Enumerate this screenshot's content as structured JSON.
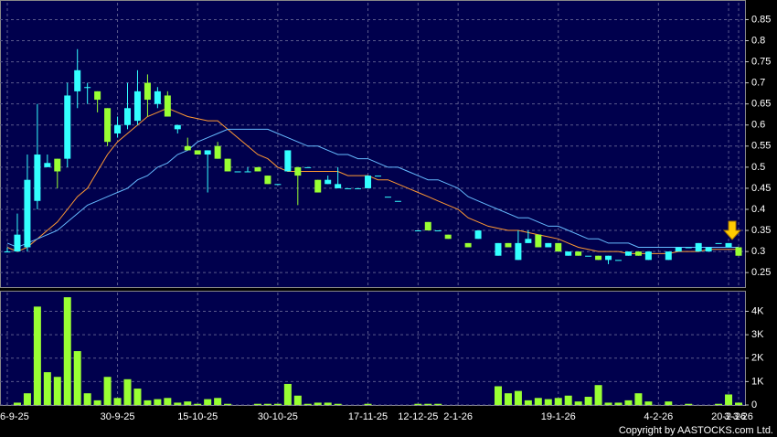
{
  "chart_data": [
    {
      "type": "candlestick",
      "categories": [
        "6-9-25",
        null,
        null,
        null,
        null,
        null,
        null,
        null,
        null,
        null,
        null,
        "30-9-25",
        null,
        null,
        null,
        null,
        null,
        null,
        null,
        "15-10-25",
        null,
        null,
        null,
        null,
        null,
        null,
        null,
        "30-10-25",
        null,
        null,
        null,
        null,
        null,
        null,
        null,
        null,
        "17-11-25",
        null,
        null,
        null,
        null,
        "12-12-25",
        null,
        null,
        null,
        "2-1-26",
        null,
        null,
        null,
        null,
        null,
        null,
        null,
        null,
        null,
        "19-1-26",
        null,
        null,
        null,
        null,
        null,
        null,
        null,
        null,
        null,
        "4-2-26",
        null,
        null,
        null,
        null,
        null,
        null,
        "20-2-26",
        "3-3-26"
      ],
      "open": [
        0.3,
        0.3,
        0.31,
        0.42,
        0.5,
        0.52,
        0.52,
        0.68,
        0.69,
        0.68,
        0.64,
        0.58,
        0.6,
        0.61,
        0.7,
        0.65,
        0.67,
        0.59,
        0.55,
        0.54,
        0.53,
        0.55,
        0.52,
        0.49,
        0.49,
        0.5,
        0.48,
        0.46,
        0.49,
        0.5,
        0.5,
        0.47,
        0.46,
        0.45,
        0.45,
        0.45,
        0.45,
        0.48,
        0.43,
        0.42,
        null,
        0.35,
        0.37,
        0.35,
        0.34,
        null,
        0.32,
        0.33,
        null,
        0.29,
        0.32,
        0.28,
        0.32,
        0.34,
        0.31,
        0.32,
        0.29,
        0.3,
        0.29,
        0.29,
        0.28,
        0.28,
        0.29,
        0.3,
        0.28,
        null,
        0.28,
        0.3,
        0.31,
        0.3,
        0.3,
        0.32,
        0.31,
        0.31
      ],
      "high": [
        0.31,
        0.39,
        0.53,
        0.65,
        0.53,
        0.52,
        0.7,
        0.78,
        0.7,
        0.68,
        0.64,
        0.62,
        0.7,
        0.73,
        0.72,
        0.69,
        0.68,
        0.6,
        0.57,
        0.54,
        0.54,
        0.56,
        0.52,
        0.49,
        0.5,
        0.5,
        0.48,
        0.46,
        0.54,
        0.5,
        0.5,
        0.47,
        0.48,
        0.5,
        0.45,
        0.45,
        0.48,
        0.48,
        0.43,
        0.42,
        null,
        0.35,
        0.37,
        0.35,
        0.34,
        null,
        0.32,
        0.35,
        null,
        0.32,
        0.32,
        0.35,
        0.35,
        0.34,
        0.32,
        0.32,
        0.3,
        0.3,
        0.29,
        0.29,
        0.29,
        0.28,
        0.3,
        0.3,
        0.3,
        null,
        0.3,
        0.31,
        0.31,
        0.32,
        0.31,
        0.32,
        0.32,
        0.31
      ],
      "low": [
        0.3,
        0.3,
        0.3,
        0.4,
        0.5,
        0.45,
        0.5,
        0.64,
        0.65,
        0.63,
        0.55,
        0.57,
        0.59,
        0.6,
        0.62,
        0.64,
        0.62,
        0.58,
        0.54,
        0.53,
        0.44,
        0.52,
        0.49,
        0.49,
        0.49,
        0.49,
        0.46,
        0.46,
        0.49,
        0.41,
        0.5,
        0.44,
        0.46,
        0.45,
        0.45,
        0.45,
        0.45,
        0.48,
        0.43,
        0.42,
        null,
        0.35,
        0.35,
        0.35,
        0.33,
        null,
        0.31,
        0.33,
        null,
        0.29,
        0.31,
        0.28,
        0.32,
        0.31,
        0.31,
        0.3,
        0.29,
        0.29,
        0.29,
        0.28,
        0.27,
        0.28,
        0.29,
        0.29,
        0.28,
        null,
        0.28,
        0.3,
        0.31,
        0.3,
        0.3,
        0.32,
        0.31,
        0.29
      ],
      "close": [
        0.3,
        0.34,
        0.47,
        0.53,
        0.51,
        0.49,
        0.67,
        0.73,
        0.69,
        0.66,
        0.56,
        0.6,
        0.64,
        0.68,
        0.66,
        0.68,
        0.62,
        0.6,
        0.54,
        0.53,
        0.54,
        0.52,
        0.49,
        0.49,
        0.49,
        0.49,
        0.46,
        0.46,
        0.54,
        0.48,
        0.5,
        0.44,
        0.47,
        0.46,
        0.45,
        0.45,
        0.48,
        0.48,
        0.43,
        0.42,
        null,
        0.35,
        0.35,
        0.35,
        0.33,
        null,
        0.31,
        0.35,
        null,
        0.32,
        0.31,
        0.32,
        0.33,
        0.31,
        0.32,
        0.3,
        0.3,
        0.29,
        0.29,
        0.28,
        0.29,
        0.28,
        0.3,
        0.29,
        0.3,
        null,
        0.3,
        0.31,
        0.31,
        0.32,
        0.31,
        0.32,
        0.32,
        0.29
      ],
      "up_color": "#33ffff",
      "down_color": "#99ff33",
      "series": [
        {
          "color": "#ff9933",
          "values": [
            0.31,
            0.3,
            0.31,
            0.33,
            0.35,
            0.37,
            0.4,
            0.43,
            0.45,
            0.49,
            0.53,
            0.56,
            0.58,
            0.6,
            0.62,
            0.63,
            0.64,
            0.63,
            0.62,
            0.615,
            0.61,
            0.61,
            0.59,
            0.57,
            0.55,
            0.53,
            0.52,
            0.5,
            0.49,
            0.49,
            0.49,
            0.49,
            0.49,
            0.49,
            0.48,
            0.48,
            0.48,
            0.47,
            0.47,
            0.46,
            0.45,
            0.44,
            0.43,
            0.42,
            0.41,
            0.4,
            0.38,
            0.37,
            0.36,
            0.355,
            0.35,
            0.35,
            0.345,
            0.34,
            0.335,
            0.33,
            0.32,
            0.31,
            0.305,
            0.3,
            0.3,
            0.3,
            0.295,
            0.295,
            0.295,
            0.295,
            0.295,
            0.3,
            0.3,
            0.3,
            0.305,
            0.305,
            0.305,
            0.305
          ]
        },
        {
          "color": "#66bbff",
          "values": [
            0.32,
            0.31,
            0.32,
            0.33,
            0.34,
            0.35,
            0.37,
            0.39,
            0.41,
            0.42,
            0.43,
            0.44,
            0.45,
            0.47,
            0.48,
            0.5,
            0.51,
            0.53,
            0.54,
            0.56,
            0.57,
            0.58,
            0.59,
            0.59,
            0.59,
            0.59,
            0.59,
            0.58,
            0.57,
            0.56,
            0.55,
            0.55,
            0.54,
            0.53,
            0.53,
            0.52,
            0.52,
            0.51,
            0.5,
            0.5,
            0.49,
            0.48,
            0.47,
            0.47,
            0.46,
            0.45,
            0.43,
            0.42,
            0.41,
            0.4,
            0.39,
            0.38,
            0.38,
            0.37,
            0.36,
            0.36,
            0.35,
            0.34,
            0.33,
            0.33,
            0.32,
            0.32,
            0.32,
            0.31,
            0.31,
            0.31,
            0.31,
            0.31,
            0.31,
            0.31,
            0.31,
            0.31,
            0.31,
            0.31
          ]
        }
      ],
      "ylim": [
        0.22,
        0.89
      ],
      "yticks": [
        0.25,
        0.3,
        0.35,
        0.4,
        0.45,
        0.5,
        0.55,
        0.6,
        0.65,
        0.7,
        0.75,
        0.8,
        0.85
      ],
      "grid": true
    },
    {
      "type": "bar",
      "values": [
        0,
        100,
        500,
        4200,
        1400,
        1200,
        4600,
        2300,
        500,
        200,
        1200,
        300,
        1100,
        700,
        200,
        250,
        300,
        100,
        150,
        50,
        250,
        300,
        50,
        0,
        0,
        50,
        50,
        50,
        900,
        400,
        50,
        100,
        100,
        50,
        0,
        0,
        50,
        0,
        0,
        0,
        0,
        50,
        50,
        50,
        0,
        0,
        0,
        0,
        0,
        800,
        500,
        600,
        200,
        300,
        250,
        300,
        400,
        150,
        350,
        850,
        100,
        100,
        200,
        500,
        150,
        0,
        150,
        0,
        50,
        0,
        0,
        50,
        450,
        100
      ],
      "color": "#99ff33",
      "ylim": [
        0,
        4800
      ],
      "yticks": [
        0,
        {
          "value": 1000,
          "label": "1K"
        },
        {
          "value": 2000,
          "label": "2K"
        },
        {
          "value": 3000,
          "label": "3K"
        },
        {
          "value": 4000,
          "label": "4K"
        }
      ],
      "grid": true
    }
  ],
  "footer": "Copyright by AASTOCKS.com Ltd."
}
